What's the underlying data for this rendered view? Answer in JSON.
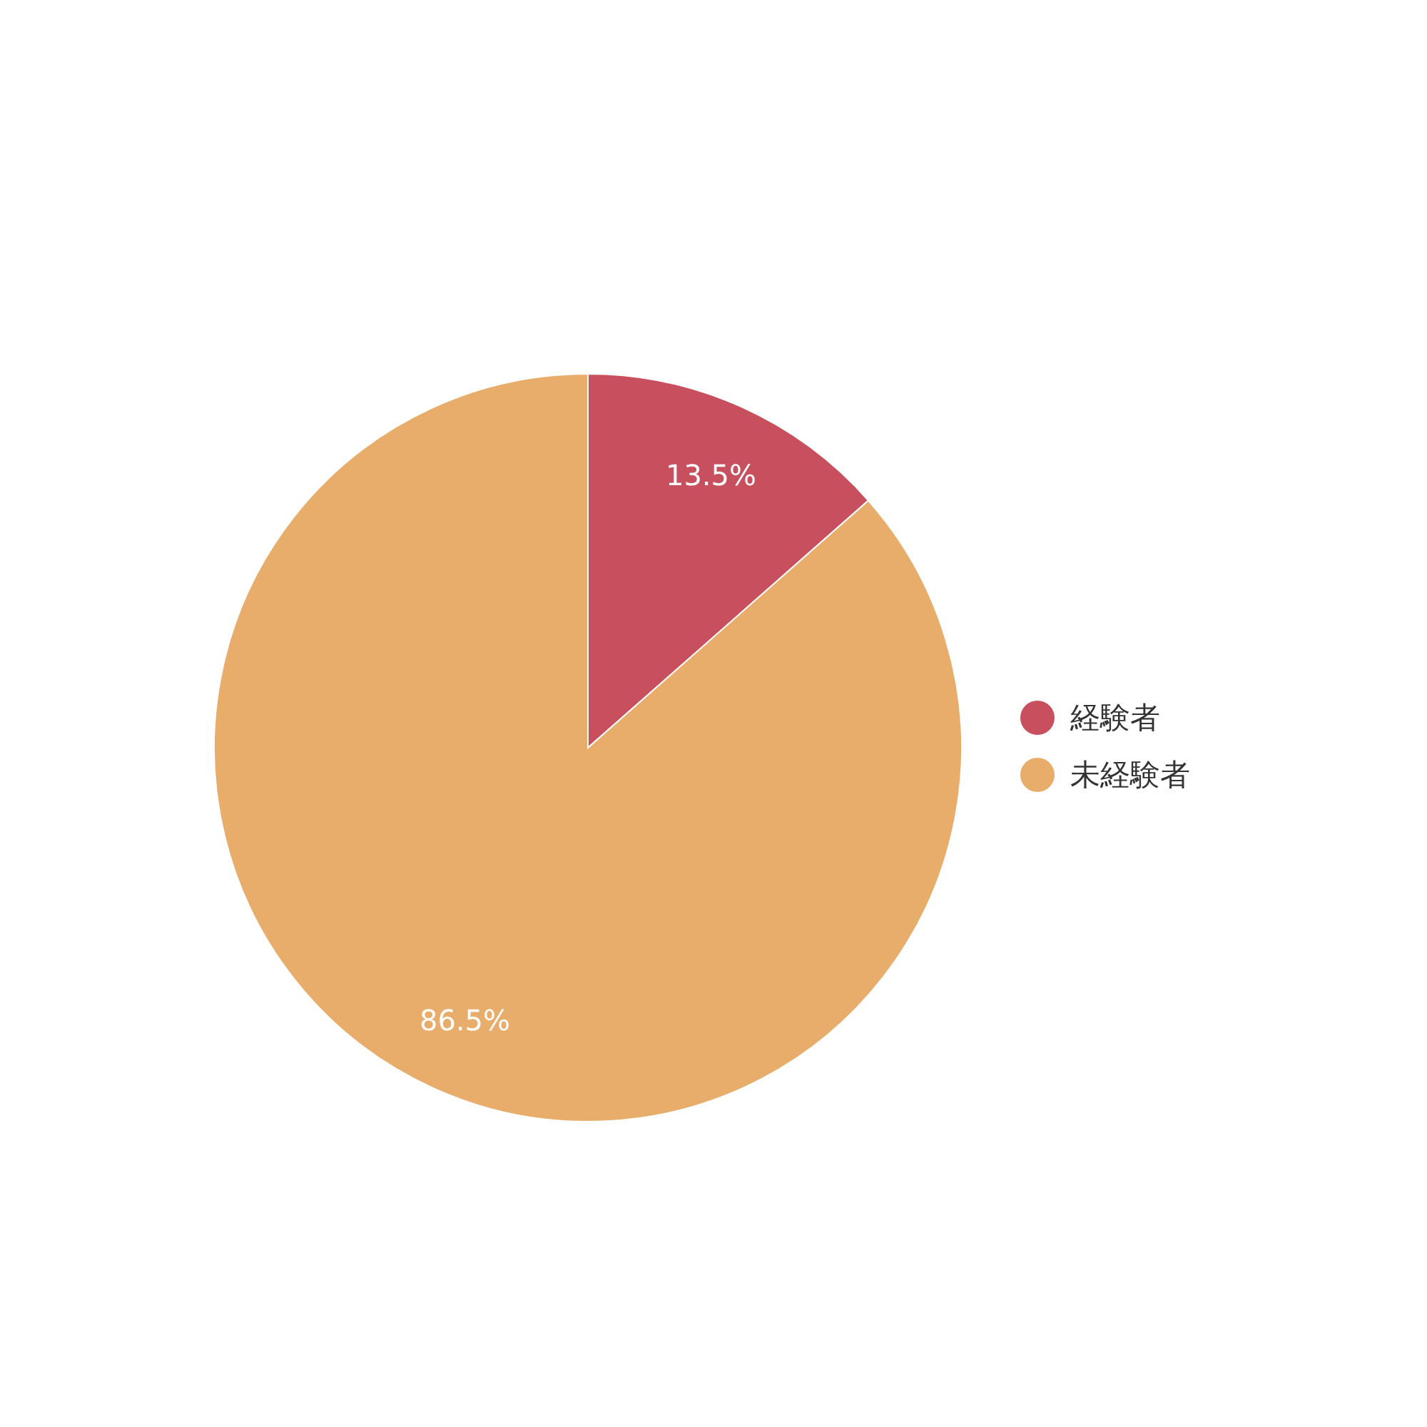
{
  "chart_data": {
    "type": "pie",
    "categories": [
      "経験者",
      "未経験者"
    ],
    "values": [
      13.5,
      86.5
    ],
    "colors": [
      "#c84f5e",
      "#e8ad6a"
    ],
    "value_labels": [
      "13.5%",
      "86.5%"
    ],
    "legend": "right"
  }
}
